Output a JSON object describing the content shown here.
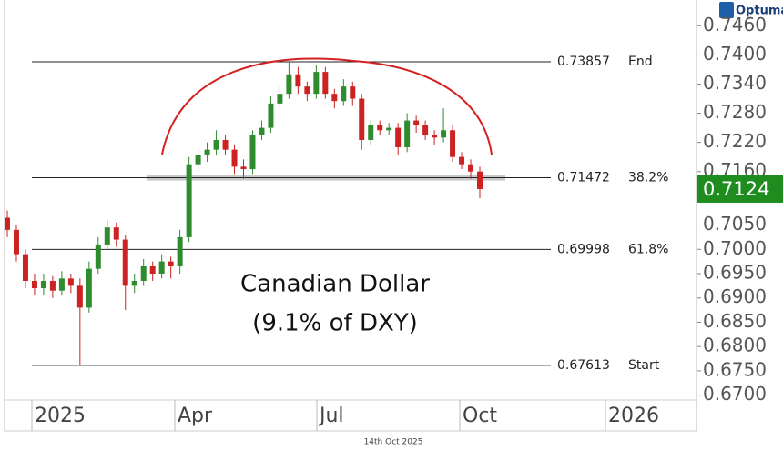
{
  "chart_data": {
    "type": "candlestick",
    "brand": "Optuma",
    "annotation": [
      "Canadian Dollar",
      "(9.1% of DXY)"
    ],
    "footer": "14th Oct 2025",
    "x_labels": [
      "2025",
      "Apr",
      "Jul",
      "Oct",
      "2026"
    ],
    "up_color": "#2e8b2e",
    "down_color": "#cc2222",
    "open": [
      0.7065,
      0.704,
      0.699,
      0.6935,
      0.692,
      0.6935,
      0.6915,
      0.694,
      0.6925,
      0.688,
      0.696,
      0.701,
      0.7045,
      0.702,
      0.6925,
      0.6935,
      0.6965,
      0.695,
      0.6975,
      0.6965,
      0.7025,
      0.7175,
      0.7195,
      0.7205,
      0.7225,
      0.7205,
      0.717,
      0.7165,
      0.7235,
      0.725,
      0.73,
      0.732,
      0.736,
      0.7335,
      0.732,
      0.7365,
      0.732,
      0.7305,
      0.7335,
      0.731,
      0.7225,
      0.7255,
      0.7245,
      0.725,
      0.721,
      0.7265,
      0.7255,
      0.7235,
      0.723,
      0.7245,
      0.719,
      0.7175,
      0.716
    ],
    "high": [
      0.708,
      0.705,
      0.7,
      0.695,
      0.695,
      0.6945,
      0.6955,
      0.695,
      0.694,
      0.6975,
      0.7025,
      0.706,
      0.7055,
      0.703,
      0.695,
      0.698,
      0.6975,
      0.699,
      0.6985,
      0.704,
      0.719,
      0.721,
      0.722,
      0.7245,
      0.7235,
      0.7215,
      0.7185,
      0.7245,
      0.7265,
      0.7315,
      0.734,
      0.7386,
      0.7375,
      0.7345,
      0.738,
      0.7375,
      0.733,
      0.735,
      0.7345,
      0.732,
      0.7265,
      0.7265,
      0.726,
      0.726,
      0.728,
      0.7275,
      0.7265,
      0.7245,
      0.729,
      0.7255,
      0.72,
      0.7185,
      0.717
    ],
    "low": [
      0.7025,
      0.6975,
      0.692,
      0.6905,
      0.6905,
      0.69,
      0.6905,
      0.691,
      0.6761,
      0.687,
      0.695,
      0.7,
      0.7005,
      0.6875,
      0.691,
      0.6925,
      0.6935,
      0.694,
      0.694,
      0.695,
      0.7015,
      0.716,
      0.718,
      0.7195,
      0.7195,
      0.7155,
      0.7145,
      0.7155,
      0.7225,
      0.724,
      0.729,
      0.731,
      0.732,
      0.7305,
      0.731,
      0.731,
      0.729,
      0.7295,
      0.7295,
      0.7205,
      0.7215,
      0.7235,
      0.7235,
      0.7195,
      0.72,
      0.724,
      0.7225,
      0.7215,
      0.722,
      0.718,
      0.7165,
      0.7145,
      0.7105
    ],
    "close": [
      0.704,
      0.699,
      0.6935,
      0.692,
      0.6935,
      0.6915,
      0.694,
      0.6925,
      0.688,
      0.696,
      0.701,
      0.7045,
      0.702,
      0.6925,
      0.6935,
      0.6965,
      0.695,
      0.6975,
      0.6965,
      0.7025,
      0.7175,
      0.7195,
      0.7205,
      0.7225,
      0.7205,
      0.717,
      0.7165,
      0.7235,
      0.725,
      0.73,
      0.732,
      0.736,
      0.7335,
      0.732,
      0.7365,
      0.732,
      0.7305,
      0.7335,
      0.731,
      0.7225,
      0.7255,
      0.7245,
      0.725,
      0.721,
      0.7265,
      0.7255,
      0.7235,
      0.723,
      0.7245,
      0.719,
      0.7175,
      0.716,
      0.7124
    ],
    "ylim": [
      0.669,
      0.7498
    ],
    "yticks": [
      {
        "value": 0.67,
        "label": "0.6700"
      },
      {
        "value": 0.675,
        "label": "0.6750"
      },
      {
        "value": 0.68,
        "label": "0.6800"
      },
      {
        "value": 0.685,
        "label": "0.6850"
      },
      {
        "value": 0.69,
        "label": "0.6900"
      },
      {
        "value": 0.695,
        "label": "0.6950"
      },
      {
        "value": 0.7,
        "label": "0.7000"
      },
      {
        "value": 0.705,
        "label": "0.7050"
      },
      {
        "value": 0.716,
        "label": "0.7160"
      },
      {
        "value": 0.722,
        "label": "0.7220"
      },
      {
        "value": 0.728,
        "label": "0.7280"
      },
      {
        "value": 0.734,
        "label": "0.7340"
      },
      {
        "value": 0.74,
        "label": "0.7400"
      },
      {
        "value": 0.746,
        "label": "0.7460"
      }
    ],
    "levels": [
      {
        "value": 0.73857,
        "tag": "End"
      },
      {
        "value": 0.71472,
        "tag": "38.2%"
      },
      {
        "value": 0.69998,
        "tag": "61.8%"
      },
      {
        "value": 0.67613,
        "tag": "Start"
      }
    ],
    "last_price": 0.7124
  }
}
